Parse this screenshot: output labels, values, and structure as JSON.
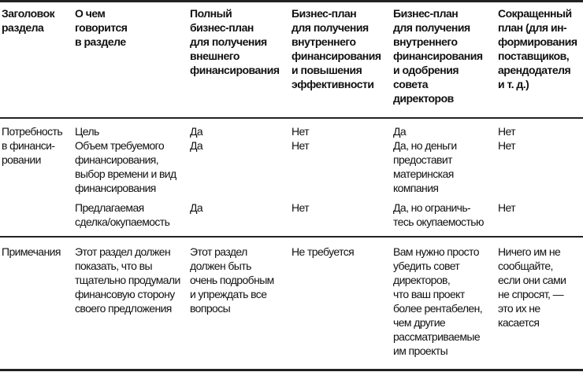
{
  "header": [
    "Заголовок\nраздела",
    "О чем\nговорится\nв разделе",
    "Полный\nбизнес-план\nдля получения\nвнешнего\nфинансирования",
    "Бизнес-план\nдля получения\nвнутреннего\nфинансирования\nи повышения\nэффективности",
    "Бизнес-план\nдля получения\nвнутреннего\nфинансирования\nи одобрения\nсовета\nдиректоров",
    "Сокращенный\nплан (для ин-\nформирования\nпоставщиков,\nарендодателя\nи т. д.)"
  ],
  "rows": [
    {
      "section": "Потребность\nв финанси-\nровании",
      "items": [
        {
          "topic": "Цель",
          "values": [
            "Да",
            "Нет",
            "Да",
            "Нет"
          ]
        },
        {
          "topic": "Объем требуемого\nфинансирования,\nвыбор времени и вид\nфинансирования",
          "values": [
            "Да",
            "Нет",
            "Да, но деньги\nпредоставит\nматеринская\nкомпания",
            "Нет"
          ]
        },
        {
          "topic": "Предлагаемая\nсделка/окупаемость",
          "values": [
            "Да",
            "Нет",
            "Да, но ограничь-\nтесь окупаемостью",
            "Нет"
          ]
        }
      ]
    },
    {
      "section": "Примечания",
      "items": [
        {
          "topic": "Этот раздел должен\nпоказать, что вы\nтщательно продумали\nфинансовую сторону\nсвоего предложения",
          "values": [
            "Этот раздел\nдолжен быть\nочень подробным\nи упреждать все\nвопросы",
            "Не требуется",
            "Вам нужно просто\nубедить совет\nдиректоров,\nчто ваш проект\nболее рентабелен,\nчем другие\nрассматриваемые\nим проекты",
            "Ничего им не\nсообщайте,\nесли они сами\nне спросят, —\nэто их не касается"
          ]
        }
      ]
    }
  ]
}
